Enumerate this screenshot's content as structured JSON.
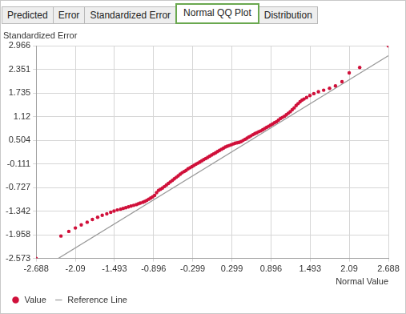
{
  "tabs": {
    "items": [
      "Predicted",
      "Error",
      "Standardized Error",
      "Normal QQ Plot",
      "Distribution"
    ],
    "selected": "Normal QQ Plot"
  },
  "chart_data": {
    "type": "scatter",
    "ylabel": "Standardized Error",
    "xlabel": "Normal Value",
    "xlim": [
      -2.688,
      2.688
    ],
    "ylim": [
      -2.573,
      2.966
    ],
    "xticks": [
      -2.688,
      -2.09,
      -1.493,
      -0.896,
      -0.299,
      0.299,
      0.896,
      1.493,
      2.09,
      2.688
    ],
    "yticks": [
      -2.573,
      -1.958,
      -1.342,
      -0.727,
      -0.111,
      0.504,
      1.12,
      1.735,
      2.351,
      2.966
    ],
    "grid": true,
    "legend": "bottom-left",
    "series": [
      {
        "name": "Value",
        "type": "scatter",
        "color": "#d0103a",
        "marker": "circle",
        "x": [
          -2.688,
          -2.31,
          -2.19,
          -2.09,
          -2.0,
          -1.91,
          -1.83,
          -1.75,
          -1.68,
          -1.61,
          -1.55,
          -1.5,
          -1.45,
          -1.4,
          -1.36,
          -1.32,
          -1.28,
          -1.24,
          -1.2,
          -1.16,
          -1.13,
          -1.1,
          -1.06,
          -1.03,
          -1.0,
          -0.97,
          -0.94,
          -0.91,
          -0.88,
          -0.85,
          -0.82,
          -0.79,
          -0.76,
          -0.73,
          -0.7,
          -0.67,
          -0.64,
          -0.61,
          -0.58,
          -0.55,
          -0.52,
          -0.49,
          -0.46,
          -0.43,
          -0.4,
          -0.37,
          -0.34,
          -0.31,
          -0.28,
          -0.25,
          -0.22,
          -0.19,
          -0.16,
          -0.13,
          -0.1,
          -0.07,
          -0.04,
          -0.01,
          0.02,
          0.05,
          0.08,
          0.11,
          0.14,
          0.17,
          0.2,
          0.23,
          0.26,
          0.29,
          0.32,
          0.35,
          0.38,
          0.41,
          0.44,
          0.47,
          0.5,
          0.53,
          0.56,
          0.59,
          0.62,
          0.65,
          0.68,
          0.71,
          0.74,
          0.77,
          0.8,
          0.83,
          0.86,
          0.89,
          0.92,
          0.95,
          0.98,
          1.01,
          1.04,
          1.07,
          1.1,
          1.13,
          1.16,
          1.19,
          1.22,
          1.25,
          1.28,
          1.31,
          1.34,
          1.37,
          1.4,
          1.44,
          1.49,
          1.55,
          1.62,
          1.7,
          1.79,
          1.88,
          1.98,
          2.09,
          2.25,
          2.688
        ],
        "values": [
          -2.573,
          -1.99,
          -1.87,
          -1.78,
          -1.7,
          -1.63,
          -1.56,
          -1.5,
          -1.45,
          -1.41,
          -1.37,
          -1.34,
          -1.31,
          -1.29,
          -1.27,
          -1.25,
          -1.23,
          -1.21,
          -1.19,
          -1.17,
          -1.15,
          -1.13,
          -1.11,
          -1.09,
          -1.06,
          -1.03,
          -1.0,
          -0.97,
          -0.93,
          -0.86,
          -0.8,
          -0.77,
          -0.74,
          -0.7,
          -0.66,
          -0.62,
          -0.58,
          -0.54,
          -0.5,
          -0.46,
          -0.42,
          -0.38,
          -0.34,
          -0.31,
          -0.28,
          -0.24,
          -0.21,
          -0.18,
          -0.15,
          -0.12,
          -0.09,
          -0.06,
          -0.03,
          0.0,
          0.03,
          0.06,
          0.09,
          0.12,
          0.15,
          0.18,
          0.21,
          0.24,
          0.27,
          0.3,
          0.33,
          0.35,
          0.37,
          0.39,
          0.41,
          0.43,
          0.44,
          0.45,
          0.47,
          0.5,
          0.53,
          0.56,
          0.59,
          0.62,
          0.65,
          0.68,
          0.7,
          0.73,
          0.75,
          0.78,
          0.81,
          0.84,
          0.87,
          0.9,
          0.93,
          0.96,
          0.99,
          1.03,
          1.07,
          1.1,
          1.13,
          1.17,
          1.21,
          1.25,
          1.3,
          1.35,
          1.41,
          1.46,
          1.51,
          1.55,
          1.58,
          1.62,
          1.67,
          1.72,
          1.77,
          1.81,
          1.86,
          1.92,
          2.03,
          2.26,
          2.4,
          2.966
        ]
      },
      {
        "name": "Reference Line",
        "type": "line",
        "color": "#9a9a9a",
        "line_style": "solid",
        "x": [
          -2.35,
          2.688
        ],
        "values": [
          -2.573,
          2.71
        ]
      }
    ]
  }
}
